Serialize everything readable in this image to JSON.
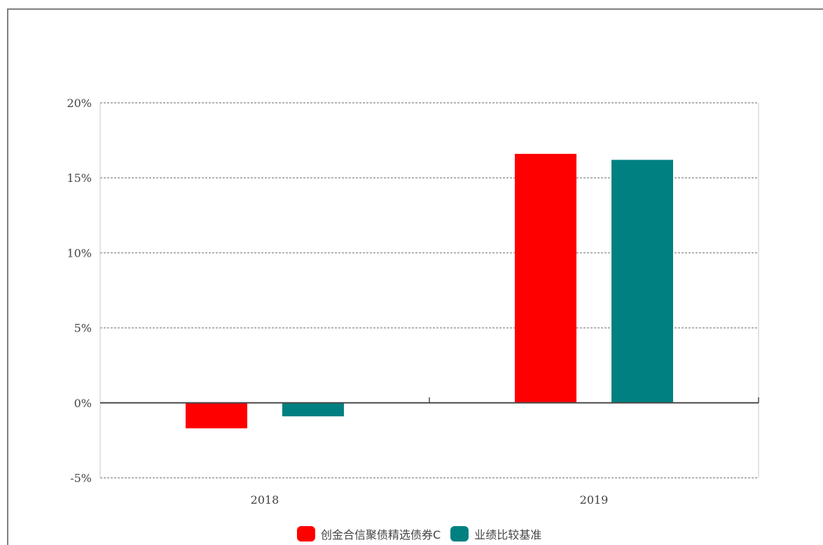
{
  "chart_data": {
    "type": "bar",
    "categories": [
      "2018",
      "2019"
    ],
    "series": [
      {
        "name": "创金合信聚债精选债券C",
        "values": [
          -1.7,
          16.6
        ],
        "color": "#ff0000"
      },
      {
        "name": "业绩比较基准",
        "values": [
          -0.9,
          16.2
        ],
        "color": "#008080"
      }
    ],
    "ylim": [
      -5,
      20
    ],
    "yticks": [
      20,
      15,
      10,
      5,
      0,
      -5
    ],
    "ytick_labels": [
      "20%",
      "15%",
      "10%",
      "5%",
      "0%",
      "-5%"
    ],
    "title": "",
    "xlabel": "",
    "ylabel": "",
    "grid": true,
    "legend_position": "bottom"
  }
}
